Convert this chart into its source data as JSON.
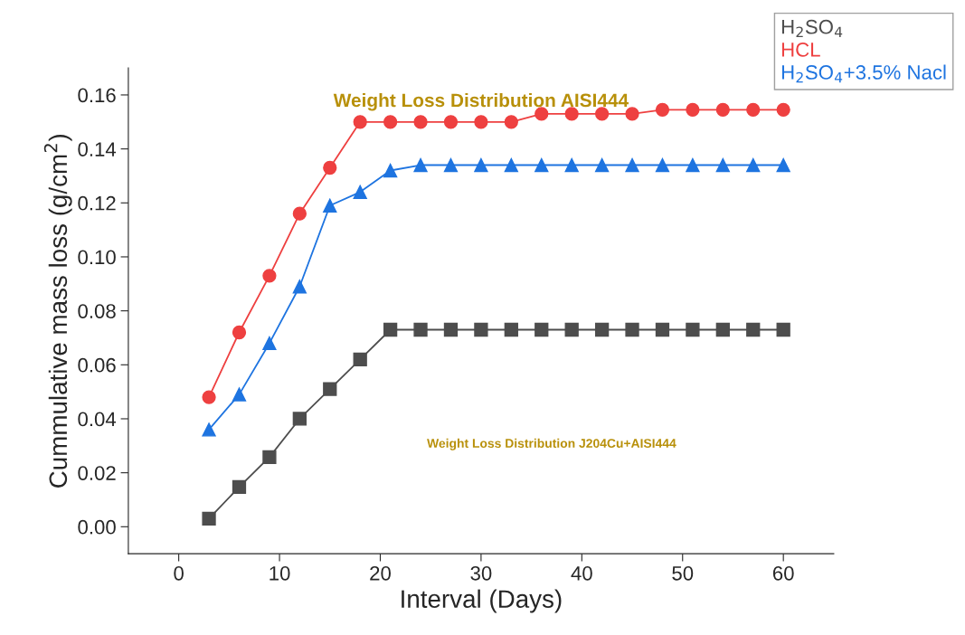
{
  "chart_data": {
    "type": "line",
    "xlabel": "Interval (Days)",
    "ylabel": "Cummulative mass loss (g/cm$^{2}$)",
    "annotations": [
      "Weight Loss Distribution AISI444",
      "Weight Loss Distribution J204Cu+AISI444"
    ],
    "x": [
      3,
      6,
      9,
      12,
      15,
      18,
      21,
      24,
      27,
      30,
      33,
      36,
      39,
      42,
      45,
      48,
      51,
      54,
      57,
      60
    ],
    "series": [
      {
        "name": "H$_{2}$SO$_{4}$",
        "color": "#4d4d4d",
        "marker": "square",
        "values": [
          0.003,
          0.0147,
          0.0258,
          0.04,
          0.051,
          0.062,
          0.073,
          0.073,
          0.073,
          0.073,
          0.073,
          0.073,
          0.073,
          0.073,
          0.073,
          0.073,
          0.073,
          0.073,
          0.073,
          0.073
        ]
      },
      {
        "name": "HCL",
        "color": "#ee4040",
        "marker": "circle",
        "values": [
          0.048,
          0.072,
          0.093,
          0.116,
          0.133,
          0.15,
          0.15,
          0.15,
          0.15,
          0.15,
          0.15,
          0.153,
          0.153,
          0.153,
          0.153,
          0.1545,
          0.1545,
          0.1545,
          0.1545,
          0.1545
        ]
      },
      {
        "name": "H$_{2}$SO$_{4}$+3.5% Nacl",
        "color": "#1e74e0",
        "marker": "triangle",
        "values": [
          0.036,
          0.049,
          0.068,
          0.089,
          0.119,
          0.124,
          0.132,
          0.134,
          0.134,
          0.134,
          0.134,
          0.134,
          0.134,
          0.134,
          0.134,
          0.134,
          0.134,
          0.134,
          0.134,
          0.134
        ]
      }
    ],
    "xlim": [
      -5,
      65
    ],
    "ylim": [
      -0.01,
      0.17
    ],
    "xticks": [
      0,
      10,
      20,
      30,
      40,
      50,
      60
    ],
    "yticks": [
      {
        "value": 0,
        "label": "0.00"
      },
      {
        "value": 0.02,
        "label": "0.02"
      },
      {
        "value": 0.04,
        "label": "0.04"
      },
      {
        "value": 0.06,
        "label": "0.06"
      },
      {
        "value": 0.08,
        "label": "0.08"
      },
      {
        "value": 0.1,
        "label": "0.10"
      },
      {
        "value": 0.12,
        "label": "0.12"
      },
      {
        "value": 0.14,
        "label": "0.14"
      },
      {
        "value": 0.16,
        "label": "0.16"
      }
    ],
    "grid": false,
    "legend": "top right",
    "line_style": "solid"
  }
}
